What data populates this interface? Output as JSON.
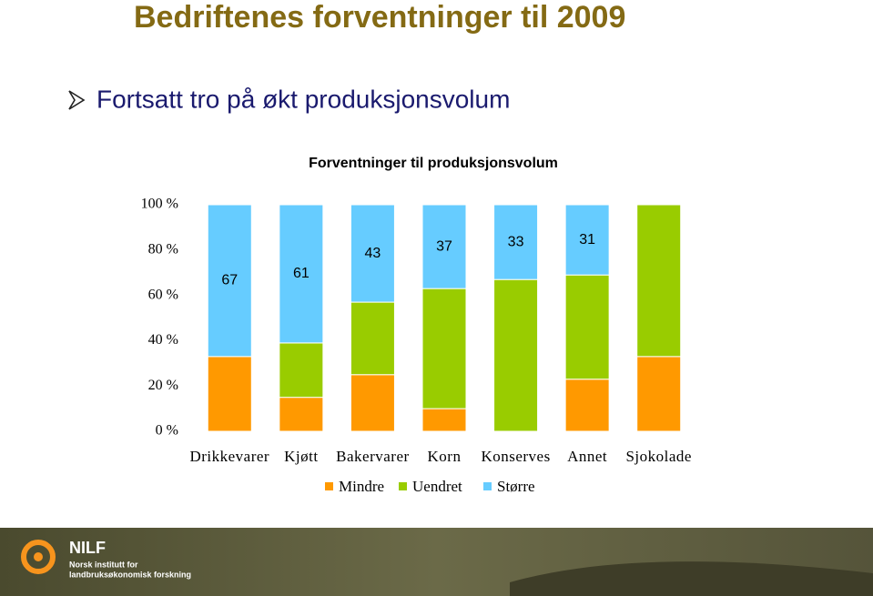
{
  "slide": {
    "title": "Bedriftenes forventninger til 2009",
    "bullet": "Fortsatt tro på økt produksjonsvolum"
  },
  "chart_data": {
    "type": "stacked_bar",
    "title": "Forventninger til produksjonsvolum",
    "categories": [
      "Drikkevarer",
      "Kjøtt",
      "Bakervarer",
      "Korn",
      "Konserves",
      "Annet",
      "Sjokolade"
    ],
    "series": [
      {
        "name": "Mindre",
        "color": "#ff9900",
        "values": [
          33,
          15,
          25,
          10,
          0,
          23,
          33
        ]
      },
      {
        "name": "Uendret",
        "color": "#99cc00",
        "values": [
          0,
          24,
          32,
          53,
          67,
          46,
          67
        ]
      },
      {
        "name": "Større",
        "color": "#66ccff",
        "values": [
          67,
          61,
          43,
          37,
          33,
          31,
          0
        ],
        "show_labels": true
      }
    ],
    "ylim": [
      0,
      100
    ],
    "yticks": [
      {
        "value": 0,
        "label": "0 %"
      },
      {
        "value": 20,
        "label": "20 %"
      },
      {
        "value": 40,
        "label": "40 %"
      },
      {
        "value": 60,
        "label": "60 %"
      },
      {
        "value": 80,
        "label": "80 %"
      },
      {
        "value": 100,
        "label": "100 %"
      }
    ],
    "legend": "bottom"
  },
  "footer": {
    "logo": "NILF",
    "line1": "Norsk institutt for",
    "line2": "landbruksøkonomisk forskning"
  }
}
